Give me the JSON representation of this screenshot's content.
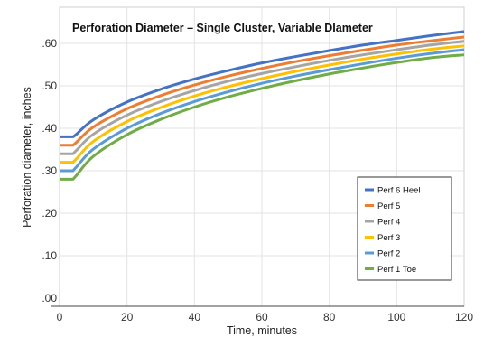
{
  "chart_data": {
    "type": "line",
    "title": "Perforation Diameter – Single Cluster, Variable DIameter",
    "xlabel": "Time, minutes",
    "ylabel": "Perforation diameter, inches",
    "xlim": [
      0,
      120
    ],
    "ylim": [
      0,
      0.65
    ],
    "x_ticks": [
      "0",
      "20",
      "40",
      "60",
      "80",
      "100",
      "120"
    ],
    "y_ticks": [
      ".00",
      ".10",
      ".20",
      ".30",
      ".40",
      ".50",
      ".60"
    ],
    "grid": true,
    "legend_position": "right",
    "x": [
      0,
      4,
      5,
      10,
      20,
      30,
      40,
      50,
      60,
      70,
      80,
      90,
      100,
      110,
      120
    ],
    "series": [
      {
        "name": "Perf 6 Heel",
        "color": "#4472c4",
        "values": [
          0.38,
          0.38,
          0.386,
          0.42,
          0.462,
          0.492,
          0.516,
          0.536,
          0.554,
          0.569,
          0.583,
          0.596,
          0.607,
          0.618,
          0.628
        ]
      },
      {
        "name": "Perf 5",
        "color": "#ed7d31",
        "values": [
          0.36,
          0.36,
          0.367,
          0.403,
          0.446,
          0.477,
          0.502,
          0.523,
          0.541,
          0.557,
          0.571,
          0.584,
          0.596,
          0.606,
          0.615
        ]
      },
      {
        "name": "Perf 4",
        "color": "#a5a5a5",
        "values": [
          0.34,
          0.34,
          0.348,
          0.386,
          0.431,
          0.463,
          0.489,
          0.511,
          0.529,
          0.545,
          0.56,
          0.573,
          0.585,
          0.596,
          0.605
        ]
      },
      {
        "name": "Perf 3",
        "color": "#ffc000",
        "values": [
          0.32,
          0.32,
          0.328,
          0.369,
          0.416,
          0.449,
          0.476,
          0.498,
          0.517,
          0.534,
          0.549,
          0.563,
          0.575,
          0.586,
          0.594
        ]
      },
      {
        "name": "Perf 2",
        "color": "#5b9bd5",
        "values": [
          0.3,
          0.3,
          0.309,
          0.351,
          0.4,
          0.435,
          0.463,
          0.486,
          0.506,
          0.523,
          0.538,
          0.552,
          0.565,
          0.576,
          0.585
        ]
      },
      {
        "name": "Perf 1 Toe",
        "color": "#70ad47",
        "values": [
          0.28,
          0.28,
          0.289,
          0.334,
          0.385,
          0.421,
          0.45,
          0.474,
          0.494,
          0.512,
          0.528,
          0.542,
          0.555,
          0.566,
          0.573
        ]
      }
    ]
  }
}
